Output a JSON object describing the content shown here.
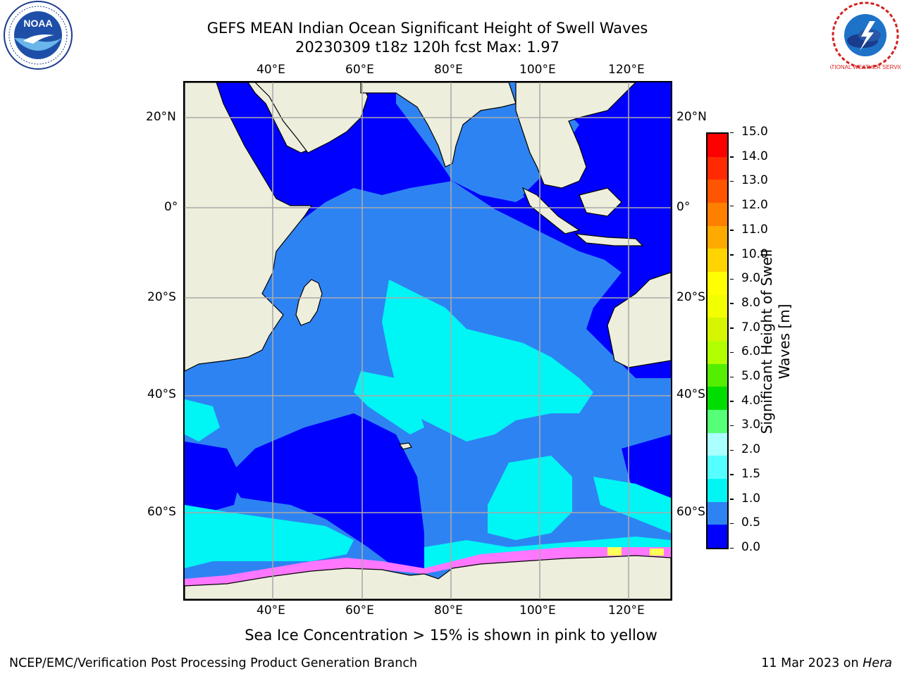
{
  "title": {
    "line1": "GEFS MEAN Indian Ocean Significant Height of Swell Waves",
    "line2": "20230309 t18z 120h fcst   Max: 1.97"
  },
  "logos": {
    "left": "NOAA",
    "right": "NATIONAL WEATHER SERVICE"
  },
  "map": {
    "lon_ticks_top": [
      "40°E",
      "60°E",
      "80°E",
      "100°E",
      "120°E"
    ],
    "lon_ticks_bottom": [
      "40°E",
      "60°E",
      "80°E",
      "100°E",
      "120°E"
    ],
    "lat_ticks_left": [
      "20°N",
      "0°",
      "20°S",
      "40°S",
      "60°S"
    ],
    "lat_ticks_right": [
      "20°N",
      "0°",
      "20°S",
      "40°S",
      "60°S"
    ],
    "colors": {
      "land": "#eeeedd",
      "ocean_low": "#0000ff",
      "ocean_mid": "#2e83f2",
      "ocean_high": "#00f5f5",
      "sea_ice": [
        "#ff77ff",
        "#ffaaaa",
        "#ffff55"
      ],
      "grid": "#aaaaaa"
    }
  },
  "colorbar": {
    "label": "Significant Height of Swell Waves [m]",
    "tick_labels": [
      "15.0",
      "14.0",
      "13.0",
      "12.0",
      "11.0",
      "10.0",
      "9.0",
      "8.0",
      "7.0",
      "6.0",
      "5.0",
      "4.0",
      "3.0",
      "2.0",
      "1.5",
      "1.0",
      "0.5",
      "0.0"
    ],
    "colors_top_to_bottom": [
      "#ff0000",
      "#ff2a00",
      "#ff5500",
      "#ff7f00",
      "#ffaa00",
      "#ffd400",
      "#ffff00",
      "#f2ff00",
      "#d5f500",
      "#b2ff00",
      "#55ee00",
      "#00dd00",
      "#55ff77",
      "#aaffff",
      "#55ffff",
      "#00f5f5",
      "#2e83f2",
      "#0000ff"
    ]
  },
  "notes": {
    "sea_ice": "Sea Ice Concentration > 15% is shown in pink to yellow"
  },
  "footer": {
    "left": "NCEP/EMC/Verification Post Processing Product Generation Branch",
    "right_prefix": "11 Mar 2023 on ",
    "right_machine": "Hera"
  }
}
